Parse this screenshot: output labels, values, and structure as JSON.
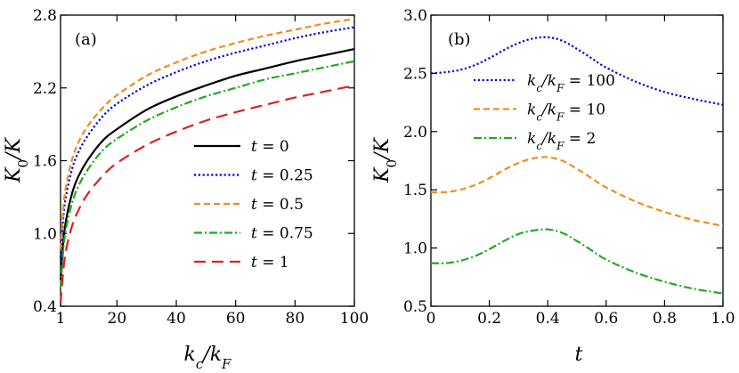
{
  "chart_data": [
    {
      "panel": "a",
      "type": "line",
      "panel_label": "(a)",
      "xlabel": "k_c/k_F",
      "ylabel": "K_0/K",
      "xlim": [
        1,
        100
      ],
      "ylim": [
        0.4,
        2.8
      ],
      "xticks": [
        1,
        20,
        40,
        60,
        80,
        100
      ],
      "xtick_labels": [
        "1",
        "20",
        "40",
        "60",
        "80",
        "100"
      ],
      "yticks": [
        0.4,
        1.0,
        1.6,
        2.2,
        2.8
      ],
      "ytick_labels": [
        "0.4",
        "1.0",
        "1.6",
        "2.2",
        "2.8"
      ],
      "legend_position": "center-right",
      "x": [
        1,
        2,
        3,
        5,
        7,
        10,
        15,
        20,
        30,
        40,
        50,
        60,
        70,
        80,
        90,
        100
      ],
      "series": [
        {
          "name": "t = 0",
          "var": "t",
          "value": "0",
          "color": "#000000",
          "dash": "solid",
          "values": [
            0.62,
            0.95,
            1.13,
            1.34,
            1.47,
            1.6,
            1.76,
            1.86,
            2.02,
            2.13,
            2.22,
            2.3,
            2.36,
            2.42,
            2.47,
            2.52
          ]
        },
        {
          "name": "t = 0.25",
          "var": "t",
          "value": "0.25",
          "color": "#0000dd",
          "dash": "dotted",
          "values": [
            0.8,
            1.15,
            1.33,
            1.54,
            1.67,
            1.8,
            1.96,
            2.07,
            2.22,
            2.33,
            2.42,
            2.49,
            2.55,
            2.61,
            2.66,
            2.7
          ]
        },
        {
          "name": "t = 0.5",
          "var": "t",
          "value": "0.5",
          "color": "#f28c1e",
          "dash": "dashed",
          "values": [
            0.87,
            1.23,
            1.41,
            1.62,
            1.75,
            1.88,
            2.03,
            2.14,
            2.3,
            2.41,
            2.5,
            2.57,
            2.63,
            2.68,
            2.73,
            2.77
          ]
        },
        {
          "name": "t = 0.75",
          "var": "t",
          "value": "0.75",
          "color": "#22aa22",
          "dash": "dashdot",
          "values": [
            0.55,
            0.88,
            1.06,
            1.26,
            1.39,
            1.52,
            1.68,
            1.78,
            1.93,
            2.04,
            2.13,
            2.2,
            2.27,
            2.32,
            2.37,
            2.42
          ]
        },
        {
          "name": "t = 1",
          "var": "t",
          "value": "1",
          "color": "#e02020",
          "dash": "longdash",
          "values": [
            0.42,
            0.71,
            0.88,
            1.07,
            1.19,
            1.32,
            1.47,
            1.58,
            1.73,
            1.84,
            1.93,
            2.0,
            2.06,
            2.12,
            2.17,
            2.22
          ]
        }
      ]
    },
    {
      "panel": "b",
      "type": "line",
      "panel_label": "(b)",
      "xlabel": "t",
      "ylabel": "K_0/K",
      "xlim": [
        0,
        1
      ],
      "ylim": [
        0.5,
        3.0
      ],
      "xticks": [
        0,
        0.2,
        0.4,
        0.6,
        0.8,
        1.0
      ],
      "xtick_labels": [
        "0",
        "0.2",
        "0.4",
        "0.6",
        "0.8",
        "1.0"
      ],
      "yticks": [
        0.5,
        1.0,
        1.5,
        2.0,
        2.5,
        3.0
      ],
      "ytick_labels": [
        "0.5",
        "1.0",
        "1.5",
        "2.0",
        "2.5",
        "3.0"
      ],
      "legend_position": "upper-center",
      "x": [
        0,
        0.05,
        0.1,
        0.15,
        0.2,
        0.25,
        0.3,
        0.35,
        0.4,
        0.45,
        0.5,
        0.55,
        0.6,
        0.7,
        0.8,
        0.9,
        1.0
      ],
      "series": [
        {
          "name": "k_c/k_F = 100",
          "var": "k_c/k_F",
          "value": "100",
          "color": "#0000dd",
          "dash": "dotted",
          "values": [
            2.5,
            2.51,
            2.53,
            2.57,
            2.63,
            2.7,
            2.76,
            2.8,
            2.81,
            2.78,
            2.71,
            2.63,
            2.55,
            2.43,
            2.34,
            2.28,
            2.23
          ]
        },
        {
          "name": "k_c/k_F = 10",
          "var": "k_c/k_F",
          "value": "10",
          "color": "#f28c1e",
          "dash": "dashed",
          "values": [
            1.48,
            1.48,
            1.5,
            1.54,
            1.6,
            1.67,
            1.73,
            1.77,
            1.78,
            1.75,
            1.68,
            1.6,
            1.52,
            1.4,
            1.31,
            1.24,
            1.19
          ]
        },
        {
          "name": "k_c/k_F = 2",
          "var": "k_c/k_F",
          "value": "2",
          "color": "#22aa22",
          "dash": "dashdot",
          "values": [
            0.87,
            0.87,
            0.89,
            0.93,
            0.99,
            1.06,
            1.12,
            1.15,
            1.16,
            1.13,
            1.06,
            0.98,
            0.9,
            0.79,
            0.71,
            0.65,
            0.61
          ]
        }
      ]
    }
  ]
}
